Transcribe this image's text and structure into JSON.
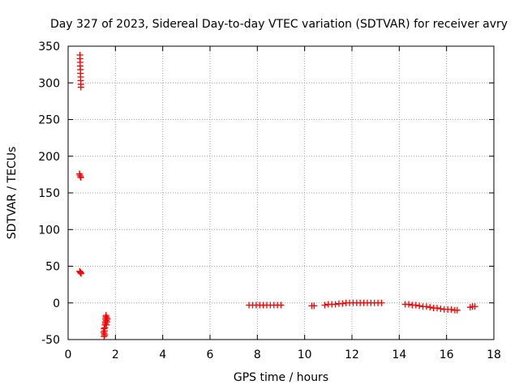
{
  "chart_data": {
    "type": "scatter",
    "title": "Day 327 of 2023, Sidereal Day-to-day VTEC variation (SDTVAR) for receiver avry",
    "xlabel": "GPS time / hours",
    "ylabel": "SDTVAR / TECUs",
    "xlim": [
      0,
      18
    ],
    "ylim": [
      -50,
      350
    ],
    "xticks": [
      0,
      2,
      4,
      6,
      8,
      10,
      12,
      14,
      16,
      18
    ],
    "yticks": [
      -50,
      0,
      50,
      100,
      150,
      200,
      250,
      300,
      350
    ],
    "grid": true,
    "marker": "plus",
    "colors": {
      "series": "#ff0000",
      "grid": "#a0a0a0",
      "axis": "#000000"
    },
    "series": [
      {
        "name": "SDTVAR",
        "points": [
          [
            0.5,
            338
          ],
          [
            0.5,
            333
          ],
          [
            0.51,
            328
          ],
          [
            0.51,
            323
          ],
          [
            0.52,
            318
          ],
          [
            0.52,
            313
          ],
          [
            0.53,
            308
          ],
          [
            0.53,
            303
          ],
          [
            0.54,
            298
          ],
          [
            0.54,
            294
          ],
          [
            0.48,
            176
          ],
          [
            0.5,
            174
          ],
          [
            0.52,
            172
          ],
          [
            0.54,
            171
          ],
          [
            0.49,
            43
          ],
          [
            0.51,
            42
          ],
          [
            0.53,
            41
          ],
          [
            0.55,
            40
          ],
          [
            1.52,
            -46
          ],
          [
            1.53,
            -42
          ],
          [
            1.54,
            -38
          ],
          [
            1.55,
            -34
          ],
          [
            1.56,
            -30
          ],
          [
            1.57,
            -26
          ],
          [
            1.58,
            -22
          ],
          [
            1.59,
            -19
          ],
          [
            1.6,
            -17
          ],
          [
            1.5,
            -40
          ],
          [
            1.52,
            -35
          ],
          [
            1.62,
            -30
          ],
          [
            1.64,
            -26
          ],
          [
            1.66,
            -22
          ],
          [
            1.54,
            -44
          ],
          [
            1.58,
            -28
          ],
          [
            1.61,
            -24
          ],
          [
            1.63,
            -20
          ],
          [
            7.65,
            -3
          ],
          [
            7.8,
            -3
          ],
          [
            7.95,
            -3
          ],
          [
            8.1,
            -3
          ],
          [
            8.25,
            -3
          ],
          [
            8.4,
            -3
          ],
          [
            8.55,
            -3
          ],
          [
            8.7,
            -3
          ],
          [
            8.85,
            -3
          ],
          [
            9.0,
            -3
          ],
          [
            10.3,
            -4
          ],
          [
            10.4,
            -4
          ],
          [
            10.85,
            -3
          ],
          [
            11.0,
            -2
          ],
          [
            11.15,
            -2
          ],
          [
            11.3,
            -2
          ],
          [
            11.45,
            -1
          ],
          [
            11.6,
            -1
          ],
          [
            11.75,
            0
          ],
          [
            11.9,
            0
          ],
          [
            12.05,
            0
          ],
          [
            12.2,
            0
          ],
          [
            12.35,
            0
          ],
          [
            12.5,
            0
          ],
          [
            12.65,
            0
          ],
          [
            12.8,
            0
          ],
          [
            12.95,
            0
          ],
          [
            13.1,
            0
          ],
          [
            13.25,
            0
          ],
          [
            14.25,
            -2
          ],
          [
            14.4,
            -2
          ],
          [
            14.55,
            -3
          ],
          [
            14.7,
            -3
          ],
          [
            14.85,
            -4
          ],
          [
            15.0,
            -5
          ],
          [
            15.15,
            -5
          ],
          [
            15.3,
            -6
          ],
          [
            15.45,
            -7
          ],
          [
            15.6,
            -7
          ],
          [
            15.75,
            -8
          ],
          [
            15.9,
            -9
          ],
          [
            16.05,
            -9
          ],
          [
            16.2,
            -9
          ],
          [
            16.35,
            -10
          ],
          [
            16.45,
            -10
          ],
          [
            17.0,
            -6
          ],
          [
            17.1,
            -5
          ],
          [
            17.2,
            -5
          ]
        ]
      }
    ]
  }
}
